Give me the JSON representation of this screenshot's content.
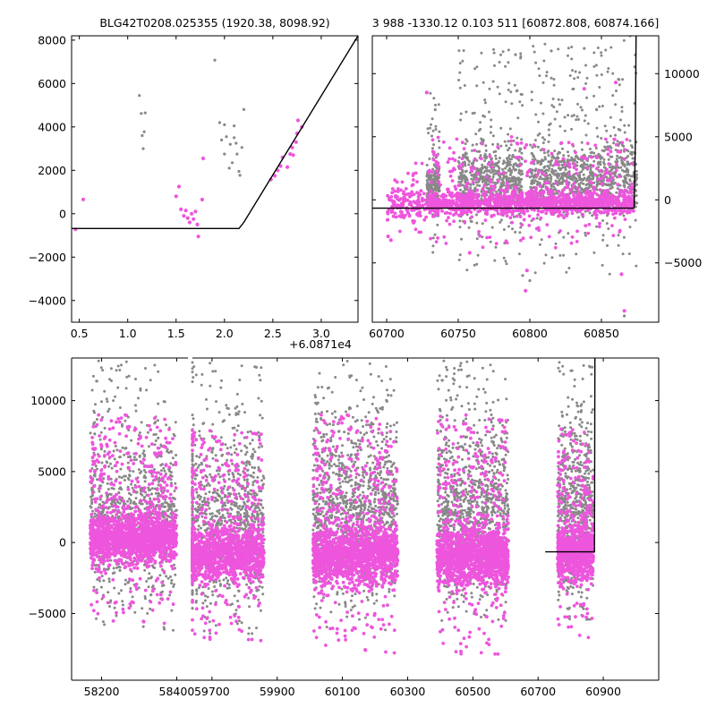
{
  "colors": {
    "gray": "#888888",
    "pink": "#ee55dd",
    "model": "#000000"
  },
  "chart_data": [
    {
      "type": "scatter",
      "title": "BLG42T0208.025355 (1920.38, 8098.92)",
      "xlim": [
        0.42,
        3.38
      ],
      "ylim": [
        -5000,
        8200
      ],
      "xticks": [
        0.5,
        1.0,
        1.5,
        2.0,
        2.5,
        3.0
      ],
      "xtick_labels": [
        "0.5",
        "1.0",
        "1.5",
        "2.0",
        "2.5",
        "3.0"
      ],
      "yticks": [
        -4000,
        -2000,
        0,
        2000,
        4000,
        6000,
        8000
      ],
      "ytick_labels": [
        "−4000",
        "−2000",
        "0",
        "2000",
        "4000",
        "6000",
        "8000"
      ],
      "series": [
        {
          "name": "gray points",
          "color": "gray",
          "points": [
            [
              1.12,
              5450
            ],
            [
              1.14,
              4620
            ],
            [
              1.18,
              4650
            ],
            [
              1.17,
              3780
            ],
            [
              1.15,
              3600
            ],
            [
              1.16,
              3000
            ],
            [
              1.9,
              7080
            ],
            [
              1.95,
              4200
            ],
            [
              2.0,
              4100
            ],
            [
              2.1,
              4050
            ],
            [
              2.2,
              4800
            ],
            [
              1.97,
              3400
            ],
            [
              2.02,
              3550
            ],
            [
              2.06,
              3200
            ],
            [
              2.12,
              3250
            ],
            [
              2.18,
              3050
            ],
            [
              2.0,
              2750
            ],
            [
              2.08,
              2350
            ],
            [
              2.05,
              2100
            ],
            [
              2.15,
              1950
            ],
            [
              2.16,
              1770
            ],
            [
              2.13,
              2750
            ],
            [
              2.1,
              3500
            ]
          ]
        },
        {
          "name": "pink points",
          "color": "pink",
          "points": [
            [
              0.46,
              -720
            ],
            [
              0.54,
              660
            ],
            [
              1.5,
              800
            ],
            [
              1.53,
              1250
            ],
            [
              1.55,
              200
            ],
            [
              1.58,
              -100
            ],
            [
              1.6,
              150
            ],
            [
              1.62,
              -200
            ],
            [
              1.64,
              -400
            ],
            [
              1.66,
              0
            ],
            [
              1.68,
              -250
            ],
            [
              1.7,
              100
            ],
            [
              1.72,
              -500
            ],
            [
              1.73,
              -1050
            ],
            [
              1.78,
              2550
            ],
            [
              1.77,
              650
            ],
            [
              2.48,
              1580
            ],
            [
              2.52,
              1750
            ],
            [
              2.55,
              2000
            ],
            [
              2.58,
              2200
            ],
            [
              2.6,
              2600
            ],
            [
              2.65,
              2150
            ],
            [
              2.68,
              2750
            ],
            [
              2.7,
              3050
            ],
            [
              2.74,
              3300
            ],
            [
              2.75,
              3700
            ],
            [
              2.76,
              4300
            ],
            [
              2.8,
              4000
            ],
            [
              2.71,
              2700
            ]
          ]
        },
        {
          "name": "model",
          "color": "model",
          "line": true,
          "points": [
            [
              0.42,
              -680
            ],
            [
              2.15,
              -680
            ],
            [
              2.2,
              -400
            ],
            [
              3.38,
              8200
            ]
          ]
        }
      ]
    },
    {
      "type": "scatter",
      "title": "3 988 -1330.12 0.103 511 [60872.808, 60874.166]",
      "xlim": [
        60690,
        60890
      ],
      "ylim": [
        -9700,
        13000
      ],
      "xticks": [
        60700,
        60750,
        60800,
        60850
      ],
      "xtick_labels": [
        "60700",
        "60750",
        "60800",
        "60850"
      ],
      "yticks": [
        -5000,
        0,
        5000,
        10000
      ],
      "ytick_labels": [
        "−5000",
        "0",
        "5000",
        "10000"
      ],
      "ytick_side": "right",
      "offset_text": "+6.0871e4",
      "clusters": [
        {
          "color": "gray",
          "count": 230,
          "x": [
            60728,
            60737
          ],
          "y_center": 900,
          "y_spread": 900,
          "y_tail": 8500
        },
        {
          "color": "gray",
          "count": 620,
          "x": [
            60750,
            60795
          ],
          "y_center": 1600,
          "y_spread": 1300,
          "y_tail": 12000
        },
        {
          "color": "gray",
          "count": 620,
          "x": [
            60800,
            60845
          ],
          "y_center": 1600,
          "y_spread": 1300,
          "y_tail": 12800
        },
        {
          "color": "gray",
          "count": 380,
          "x": [
            60846,
            60875
          ],
          "y_center": 1700,
          "y_spread": 1500,
          "y_tail": 12800
        },
        {
          "color": "pink",
          "count": 160,
          "x": [
            60700,
            60728
          ],
          "y_center": -300,
          "y_spread": 600,
          "y_tail": 3000
        },
        {
          "color": "pink",
          "count": 1400,
          "x": [
            60729,
            60873
          ],
          "y_center": -250,
          "y_spread": 450,
          "y_tail": 5000
        }
      ],
      "series": [
        {
          "name": "gray outliers",
          "color": "gray",
          "points": [
            [
              60795,
              -6000
            ],
            [
              60800,
              -6400
            ],
            [
              60866,
              -9200
            ],
            [
              60838,
              12000
            ],
            [
              60815,
              11800
            ],
            [
              60790,
              11500
            ],
            [
              60870,
              13000
            ]
          ]
        },
        {
          "name": "pink outliers",
          "color": "pink",
          "points": [
            [
              60701,
              -2900
            ],
            [
              60703,
              -3200
            ],
            [
              60728,
              8500
            ],
            [
              60758,
              -4200
            ],
            [
              60797,
              -7200
            ],
            [
              60798,
              -5600
            ],
            [
              60866,
              -8800
            ],
            [
              60864,
              -5900
            ],
            [
              60838,
              8800
            ],
            [
              60860,
              9300
            ],
            [
              60822,
              4500
            ]
          ]
        },
        {
          "name": "model",
          "color": "model",
          "line": true,
          "points": [
            [
              60690,
              -660
            ],
            [
              60872.8,
              -660
            ],
            [
              60873.6,
              4000
            ],
            [
              60874.2,
              13000
            ]
          ]
        }
      ]
    },
    {
      "type": "scatter",
      "title": "",
      "xlim": [
        58120,
        61070
      ],
      "ylim": [
        -9700,
        13000
      ],
      "xticks": [
        58200,
        58400,
        59700,
        59900,
        60100,
        60300,
        60500,
        60700,
        60900
      ],
      "xtick_labels": [
        "58200",
        "58400",
        "59700",
        "59900",
        "60100",
        "60300",
        "60500",
        "60700",
        "60900"
      ],
      "yticks": [
        -5000,
        0,
        5000,
        10000
      ],
      "ytick_labels": [
        "−5000",
        "0",
        "5000",
        "10000"
      ],
      "clusters": [
        {
          "color": "gray",
          "count": 900,
          "x": [
            58170,
            58400
          ],
          "y_center": 1600,
          "y_spread": 2600,
          "y_tail": 12800
        },
        {
          "color": "pink",
          "count": 1700,
          "x": [
            58170,
            58400
          ],
          "y_center": 300,
          "y_spread": 800,
          "y_tail": 9000
        },
        {
          "color": "gray",
          "count": 900,
          "x": [
            59610,
            59860
          ],
          "y_center": 1400,
          "y_spread": 2800,
          "y_tail": 12800
        },
        {
          "color": "pink",
          "count": 1400,
          "x": [
            59610,
            59860
          ],
          "y_center": -800,
          "y_spread": 900,
          "y_tail": 8000
        },
        {
          "color": "gray",
          "count": 1100,
          "x": [
            60010,
            60270
          ],
          "y_center": 2000,
          "y_spread": 2800,
          "y_tail": 12800
        },
        {
          "color": "pink",
          "count": 1700,
          "x": [
            60010,
            60270
          ],
          "y_center": -900,
          "y_spread": 1000,
          "y_tail": 9000
        },
        {
          "color": "gray",
          "count": 1000,
          "x": [
            60390,
            60610
          ],
          "y_center": 2000,
          "y_spread": 2800,
          "y_tail": 12800
        },
        {
          "color": "pink",
          "count": 1500,
          "x": [
            60390,
            60610
          ],
          "y_center": -1000,
          "y_spread": 1000,
          "y_tail": 9000
        },
        {
          "color": "gray",
          "count": 650,
          "x": [
            60760,
            60870
          ],
          "y_center": 2000,
          "y_spread": 2800,
          "y_tail": 12800
        },
        {
          "color": "pink",
          "count": 900,
          "x": [
            60760,
            60870
          ],
          "y_center": -700,
          "y_spread": 900,
          "y_tail": 8000
        }
      ],
      "series": [
        {
          "name": "model",
          "color": "model",
          "line": true,
          "points": [
            [
              60722,
              -660
            ],
            [
              60872.8,
              -660
            ],
            [
              60873.6,
              4000
            ],
            [
              60874.2,
              13000
            ]
          ]
        }
      ]
    }
  ]
}
